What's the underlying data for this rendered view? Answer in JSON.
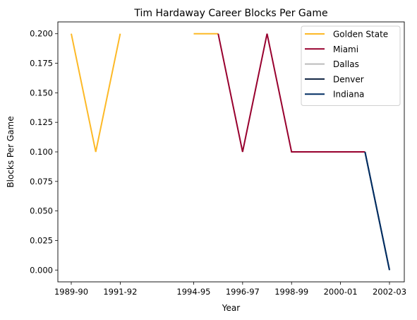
{
  "chart_data": {
    "type": "line",
    "title": "Tim Hardaway Career Blocks Per Game",
    "xlabel": "Year",
    "ylabel": "Blocks Per Game",
    "x": [
      "1989-90",
      "1990-91",
      "1991-92",
      "1992-93",
      "1993-94",
      "1994-95",
      "1995-96",
      "1996-97",
      "1997-98",
      "1998-99",
      "1999-00",
      "2000-01",
      "2001-02",
      "2002-03"
    ],
    "xticks": [
      "1989-90",
      "1991-92",
      "1994-95",
      "1996-97",
      "1998-99",
      "2000-01",
      "2002-03"
    ],
    "yticks": [
      "0.000",
      "0.025",
      "0.050",
      "0.075",
      "0.100",
      "0.125",
      "0.150",
      "0.175",
      "0.200"
    ],
    "ylim": [
      -0.01,
      0.21
    ],
    "legend_position": "top-right",
    "series": [
      {
        "name": "Golden State",
        "color": "#FDB927",
        "x": [
          "1989-90",
          "1990-91",
          "1991-92",
          null,
          "1994-95",
          "1995-96"
        ],
        "values": [
          0.2,
          0.1,
          0.2,
          null,
          0.2,
          0.2
        ]
      },
      {
        "name": "Miami",
        "color": "#98002E",
        "x": [
          "1995-96",
          "1996-97",
          "1997-98",
          "1998-99",
          "1999-00",
          "2000-01",
          "2001-02"
        ],
        "values": [
          0.2,
          0.1,
          0.2,
          0.1,
          0.1,
          0.1,
          0.1
        ]
      },
      {
        "name": "Dallas",
        "color": "#BBBBBB",
        "x": [
          "2001-02"
        ],
        "values": [
          0.1
        ]
      },
      {
        "name": "Denver",
        "color": "#0E2240",
        "x": [
          "2001-02",
          "2002-03"
        ],
        "values": [
          0.1,
          0.0
        ]
      },
      {
        "name": "Indiana",
        "color": "#002D62",
        "x": [
          "2001-02",
          "2002-03"
        ],
        "values": [
          0.1,
          0.0
        ]
      }
    ]
  }
}
